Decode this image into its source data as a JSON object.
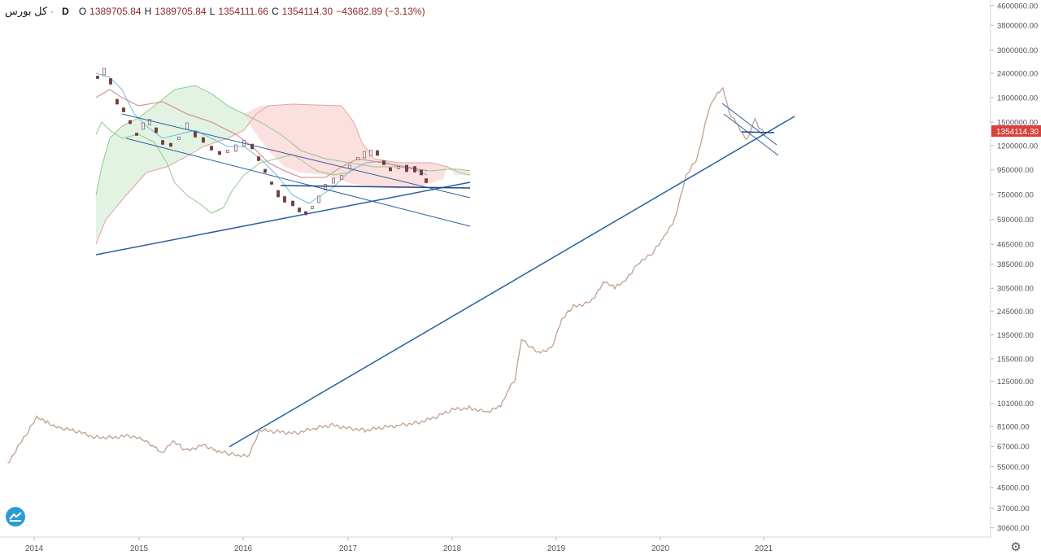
{
  "header": {
    "symbol": "کل بورس",
    "timeframe": "D",
    "open_label": "O",
    "open": "1389705.84",
    "high_label": "H",
    "high": "1389705.84",
    "low_label": "L",
    "low": "1354111.66",
    "close_label": "C",
    "close": "1354114.30",
    "change": "−43682.89 (−3.13%)"
  },
  "icons": {
    "logo": "tradingview-logo-icon",
    "settings": "gear-icon"
  },
  "colors": {
    "price": "#c0a090",
    "trendline": "#2a5fa0",
    "last_price_bg": "#d9413b",
    "cloud_bull": "#e0f2e0",
    "cloud_bear": "#fcdcdc",
    "up_candle": "#e8e8e8",
    "down_candle": "#7a3b3b"
  },
  "chart_data": {
    "type": "line",
    "y_scale": "log",
    "ylim": [
      28000,
      4700000
    ],
    "y_ticks": [
      "4600000.00",
      "3800000.00",
      "3000000.00",
      "2400000.00",
      "1900000.00",
      "1500000.00",
      "1200000.00",
      "950000.00",
      "750000.00",
      "590000.00",
      "465000.00",
      "385000.00",
      "305000.00",
      "245000.00",
      "195000.00",
      "155000.00",
      "125000.00",
      "101000.00",
      "81000.00",
      "67000.00",
      "55000.00",
      "45000.00",
      "37000.00",
      "30600.00"
    ],
    "x_ticks": [
      "2014",
      "2015",
      "2016",
      "2017",
      "2018",
      "2019",
      "2020",
      "2021"
    ],
    "last_price_label": "1354114.30",
    "series": [
      {
        "x": [
          "2013-10-01",
          "2013-12-01",
          "2014-01-10",
          "2014-02-15",
          "2014-04-01",
          "2014-06-01",
          "2014-08-01",
          "2014-10-01",
          "2014-12-01",
          "2015-01-15",
          "2015-03-01",
          "2015-03-20",
          "2015-05-01",
          "2015-06-15",
          "2015-08-15",
          "2015-10-01",
          "2015-11-15",
          "2015-12-25",
          "2016-01-20",
          "2016-03-01",
          "2016-05-01",
          "2016-07-01",
          "2016-09-01",
          "2016-11-01",
          "2017-01-01",
          "2017-03-01",
          "2017-05-01",
          "2017-07-01",
          "2017-09-01",
          "2017-11-01",
          "2018-01-01",
          "2018-03-01",
          "2018-05-01",
          "2018-06-20",
          "2018-07-20",
          "2018-08-10",
          "2018-09-01",
          "2018-09-25",
          "2018-11-01",
          "2018-12-15",
          "2019-01-20",
          "2019-03-01",
          "2019-05-01",
          "2019-06-20",
          "2019-07-25",
          "2019-09-01",
          "2019-10-15",
          "2019-12-01",
          "2020-01-15",
          "2020-02-20",
          "2020-04-01",
          "2020-05-10",
          "2020-06-01",
          "2020-06-20",
          "2020-07-10",
          "2020-07-28",
          "2020-08-10",
          "2020-09-01",
          "2020-10-01",
          "2020-11-01",
          "2020-12-01",
          "2020-12-20",
          "2021-01-05"
        ],
        "y": [
          57000,
          74000,
          88000,
          84000,
          80000,
          77000,
          73000,
          73000,
          74000,
          71000,
          66000,
          63000,
          70000,
          64000,
          68000,
          64000,
          62000,
          61000,
          62000,
          78000,
          77000,
          76000,
          79000,
          82000,
          80000,
          78000,
          80000,
          82000,
          84000,
          88000,
          95000,
          97000,
          93000,
          98000,
          116000,
          128000,
          190000,
          175000,
          165000,
          172000,
          225000,
          255000,
          268000,
          325000,
          305000,
          330000,
          390000,
          420000,
          500000,
          590000,
          900000,
          1050000,
          1350000,
          1700000,
          1900000,
          2000000,
          2100000,
          1650000,
          1450000,
          1250000,
          1550000,
          1400000,
          1354114
        ]
      }
    ]
  }
}
